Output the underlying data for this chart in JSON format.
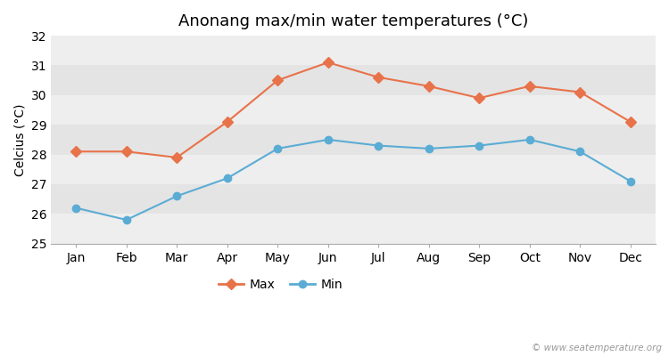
{
  "title": "Anonang max/min water temperatures (°C)",
  "ylabel": "Celcius (°C)",
  "months": [
    "Jan",
    "Feb",
    "Mar",
    "Apr",
    "May",
    "Jun",
    "Jul",
    "Aug",
    "Sep",
    "Oct",
    "Nov",
    "Dec"
  ],
  "max_temps": [
    28.1,
    28.1,
    27.9,
    29.1,
    30.5,
    31.1,
    30.6,
    30.3,
    29.9,
    30.3,
    30.1,
    29.1
  ],
  "min_temps": [
    26.2,
    25.8,
    26.6,
    27.2,
    28.2,
    28.5,
    28.3,
    28.2,
    28.3,
    28.5,
    28.1,
    27.1
  ],
  "max_color": "#e8724a",
  "min_color": "#5bacd4",
  "bg_color": "#ffffff",
  "band_colors": [
    "#eeeeee",
    "#e4e4e4"
  ],
  "ylim": [
    25,
    32
  ],
  "yticks": [
    25,
    26,
    27,
    28,
    29,
    30,
    31,
    32
  ],
  "legend_labels": [
    "Max",
    "Min"
  ],
  "watermark": "© www.seatemperature.org",
  "title_fontsize": 13,
  "axis_fontsize": 10,
  "tick_fontsize": 10
}
